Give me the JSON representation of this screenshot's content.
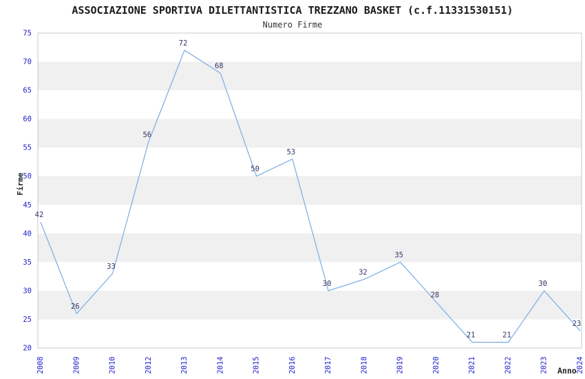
{
  "chart_data": {
    "type": "line",
    "title": "ASSOCIAZIONE SPORTIVA DILETTANTISTICA TREZZANO BASKET (c.f.11331530151)",
    "subtitle": "Numero Firme",
    "xlabel": "Anno",
    "ylabel": "Firme",
    "categories": [
      "2008",
      "2009",
      "2010",
      "2012",
      "2013",
      "2014",
      "2015",
      "2016",
      "2017",
      "2018",
      "2019",
      "2020",
      "2021",
      "2022",
      "2023",
      "2024"
    ],
    "values": [
      42,
      26,
      33,
      56,
      72,
      68,
      50,
      53,
      30,
      32,
      35,
      28,
      21,
      21,
      30,
      23
    ],
    "ylim": [
      20,
      75
    ],
    "ytick_step": 5,
    "legend": "none",
    "grid": "alternating horizontal bands",
    "point_labels_shown": true,
    "colors": {
      "line": "#7fb2e5",
      "tick_labels": "#2222cc",
      "point_labels": "#333366",
      "band": "#f0f0f0",
      "frame": "#c9c9c9",
      "title_text": "#1a1a1a"
    }
  }
}
